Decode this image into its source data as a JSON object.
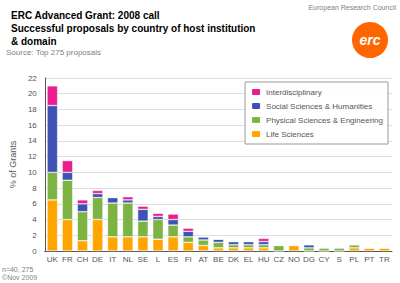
{
  "chart_data": {
    "type": "bar",
    "title": "ERC Advanced Grant: 2008 call\nSuccessful proposals by country of host institution\n& domain",
    "annotations": [
      "Source: Top 275 proposals",
      "European Research Council",
      "erc",
      "n=40, 275\n©Nov 2009"
    ],
    "categories": [
      "UK",
      "FR",
      "CH",
      "DE",
      "IT",
      "NL",
      "SE",
      "L",
      "ES",
      "FI",
      "AT",
      "BE",
      "DK",
      "EL",
      "HU",
      "CZ",
      "NO",
      "DG",
      "CY",
      "S",
      "PL",
      "PT",
      "TR"
    ],
    "series": [
      {
        "name": "Life Sciences",
        "color": "#FFA500",
        "values": [
          6.5,
          4.0,
          1.3,
          4.0,
          1.8,
          1.8,
          1.8,
          1.5,
          1.8,
          1.1,
          0.7,
          0.4,
          0.4,
          0.4,
          0.4,
          0.0,
          0.7,
          0.0,
          0.0,
          0.0,
          0.4,
          0.4,
          0.4
        ]
      },
      {
        "name": "Physical Sciences & Engineering",
        "color": "#7CB342",
        "values": [
          3.5,
          5.0,
          3.7,
          2.8,
          4.3,
          4.3,
          2.0,
          2.5,
          1.5,
          0.7,
          0.7,
          0.7,
          0.4,
          0.4,
          0.4,
          0.7,
          0.0,
          0.4,
          0.4,
          0.4,
          0.4,
          0.0,
          0.0
        ]
      },
      {
        "name": "Social Sciences & Humanities",
        "color": "#3F51B5",
        "values": [
          8.5,
          1.0,
          1.0,
          0.5,
          0.7,
          0.4,
          1.5,
          0.4,
          0.7,
          0.7,
          0.4,
          0.4,
          0.4,
          0.4,
          0.4,
          0.0,
          0.0,
          0.4,
          0.0,
          0.0,
          0.0,
          0.0,
          0.0
        ]
      },
      {
        "name": "Interdisciplinary",
        "color": "#E91E8C",
        "values": [
          2.5,
          1.5,
          0.5,
          0.4,
          0.0,
          0.4,
          0.4,
          0.4,
          0.7,
          0.4,
          0.0,
          0.0,
          0.0,
          0.0,
          0.4,
          0.0,
          0.0,
          0.0,
          0.0,
          0.0,
          0.0,
          0.0,
          0.0
        ]
      }
    ],
    "ylabel": "% of Grants",
    "ylim": [
      0,
      22
    ],
    "yticks": [
      0,
      2,
      4,
      6,
      8,
      10,
      12,
      14,
      16,
      18,
      20,
      22
    ],
    "stacked": true,
    "grid": true,
    "legend": "upper right"
  }
}
